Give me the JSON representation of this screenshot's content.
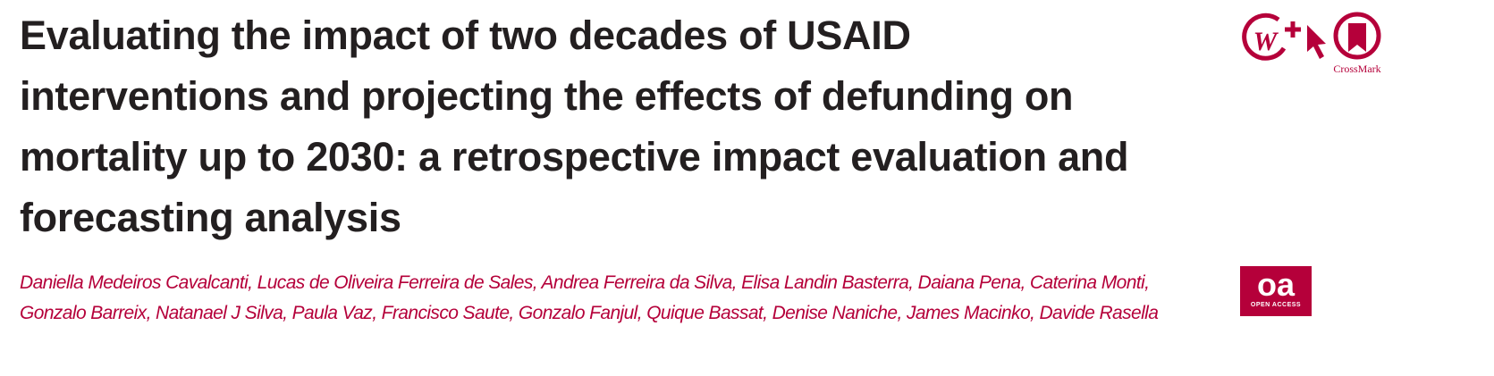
{
  "header": {
    "title_lines": [
      "Evaluating the impact of two decades of USAID",
      "interventions and projecting the effects of defunding on",
      "mortality up to 2030: a retrospective impact evaluation and",
      "forecasting analysis"
    ],
    "author_lines": [
      "Daniella Medeiros Cavalcanti, Lucas de Oliveira Ferreira de Sales, Andrea Ferreira da Silva, Elisa Landin Basterra, Daiana Pena, Caterina Monti,",
      "Gonzalo Barreix, Natanael J Silva, Paula Vaz, Francisco Saute, Gonzalo Fanjul, Quique Bassat, Denise Naniche, James Macinko, Davide Rasella"
    ],
    "crossmark_label": "CrossMark",
    "oa_badge": {
      "mark": "oa",
      "label": "OPEN ACCESS"
    }
  }
}
